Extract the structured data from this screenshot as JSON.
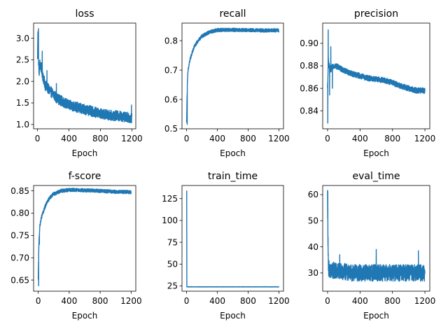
{
  "chart_data": [
    {
      "type": "line",
      "title": "loss",
      "xlabel": "Epoch",
      "ylabel": "",
      "xlim": [
        -50,
        1250
      ],
      "ylim": [
        0.9,
        3.35
      ],
      "xticks": [
        0,
        400,
        800,
        1200
      ],
      "yticks": [
        1.0,
        1.5,
        2.0,
        2.5,
        3.0
      ],
      "ytick_labels": [
        "1.0",
        "1.5",
        "2.0",
        "2.5",
        "3.0"
      ],
      "series": [
        {
          "color": "#1f77b4",
          "x": [
            0,
            5,
            10,
            20,
            30,
            50,
            70,
            100,
            150,
            200,
            250,
            300,
            400,
            500,
            600,
            700,
            800,
            900,
            1000,
            1100,
            1200
          ],
          "y": [
            2.5,
            3.2,
            2.6,
            2.2,
            2.4,
            2.3,
            2.1,
            1.9,
            1.8,
            1.7,
            1.6,
            1.55,
            1.45,
            1.4,
            1.35,
            1.3,
            1.25,
            1.22,
            1.2,
            1.18,
            1.15
          ],
          "noise": 0.12,
          "spikes": [
            [
              60,
              2.7
            ],
            [
              12,
              3.22
            ],
            [
              120,
              2.25
            ],
            [
              240,
              1.95
            ],
            [
              1195,
              1.45
            ]
          ]
        }
      ]
    },
    {
      "type": "line",
      "title": "recall",
      "xlabel": "Epoch",
      "ylabel": "",
      "xlim": [
        -60,
        1260
      ],
      "ylim": [
        0.5,
        0.86
      ],
      "xticks": [
        0,
        400,
        800,
        1200
      ],
      "yticks": [
        0.5,
        0.6,
        0.7,
        0.8
      ],
      "ytick_labels": [
        "0.5",
        "0.6",
        "0.7",
        "0.8"
      ],
      "series": [
        {
          "color": "#1f77b4",
          "x": [
            0,
            5,
            10,
            20,
            40,
            60,
            100,
            150,
            200,
            300,
            400,
            500,
            600,
            800,
            1000,
            1200
          ],
          "y": [
            0.52,
            0.6,
            0.66,
            0.7,
            0.73,
            0.75,
            0.78,
            0.8,
            0.815,
            0.83,
            0.836,
            0.837,
            0.837,
            0.836,
            0.835,
            0.835
          ],
          "noise": 0.006,
          "spikes": [
            [
              8,
              0.515
            ],
            [
              15,
              0.69
            ]
          ]
        }
      ]
    },
    {
      "type": "line",
      "title": "precision",
      "xlabel": "Epoch",
      "ylabel": "",
      "xlim": [
        -60,
        1260
      ],
      "ylim": [
        0.824,
        0.918
      ],
      "xticks": [
        0,
        400,
        800,
        1200
      ],
      "yticks": [
        0.84,
        0.86,
        0.88,
        0.9
      ],
      "ytick_labels": [
        "0.84",
        "0.86",
        "0.88",
        "0.90"
      ],
      "series": [
        {
          "color": "#1f77b4",
          "x": [
            0,
            10,
            20,
            40,
            60,
            100,
            150,
            200,
            300,
            400,
            500,
            600,
            700,
            800,
            900,
            1000,
            1100,
            1200
          ],
          "y": [
            0.86,
            0.885,
            0.88,
            0.875,
            0.88,
            0.88,
            0.878,
            0.876,
            0.873,
            0.871,
            0.869,
            0.868,
            0.867,
            0.865,
            0.862,
            0.86,
            0.858,
            0.858
          ],
          "noise": 0.0025,
          "spikes": [
            [
              3,
              0.829
            ],
            [
              8,
              0.912
            ],
            [
              25,
              0.854
            ],
            [
              40,
              0.897
            ],
            [
              60,
              0.86
            ]
          ]
        }
      ]
    },
    {
      "type": "line",
      "title": "f-score",
      "xlabel": "Epoch",
      "ylabel": "",
      "xlim": [
        -60,
        1260
      ],
      "ylim": [
        0.625,
        0.862
      ],
      "xticks": [
        0,
        400,
        800,
        1200
      ],
      "yticks": [
        0.65,
        0.7,
        0.75,
        0.8,
        0.85
      ],
      "ytick_labels": [
        "0.65",
        "0.70",
        "0.75",
        "0.80",
        "0.85"
      ],
      "series": [
        {
          "color": "#1f77b4",
          "x": [
            0,
            5,
            10,
            20,
            40,
            60,
            100,
            150,
            200,
            300,
            400,
            500,
            600,
            800,
            1000,
            1200
          ],
          "y": [
            0.65,
            0.7,
            0.74,
            0.77,
            0.79,
            0.8,
            0.82,
            0.835,
            0.843,
            0.85,
            0.852,
            0.852,
            0.851,
            0.85,
            0.848,
            0.847
          ],
          "noise": 0.004,
          "spikes": [
            [
              5,
              0.637
            ],
            [
              15,
              0.73
            ]
          ]
        }
      ]
    },
    {
      "type": "line",
      "title": "train_time",
      "xlabel": "Epoch",
      "ylabel": "",
      "xlim": [
        -60,
        1260
      ],
      "ylim": [
        19,
        140
      ],
      "xticks": [
        0,
        400,
        800,
        1200
      ],
      "yticks": [
        25,
        50,
        75,
        100,
        125
      ],
      "ytick_labels": [
        "25",
        "50",
        "75",
        "100",
        "125"
      ],
      "series": [
        {
          "color": "#1f77b4",
          "x": [
            0,
            1,
            3,
            20,
            100,
            400,
            800,
            1200
          ],
          "y": [
            134,
            134,
            24,
            24,
            24,
            24,
            24,
            24
          ],
          "noise": 0.15,
          "spikes": []
        }
      ]
    },
    {
      "type": "line",
      "title": "eval_time",
      "xlabel": "Epoch",
      "ylabel": "",
      "xlim": [
        -60,
        1260
      ],
      "ylim": [
        23,
        63.5
      ],
      "xticks": [
        0,
        400,
        800,
        1200
      ],
      "yticks": [
        30,
        40,
        50,
        60
      ],
      "ytick_labels": [
        "30",
        "40",
        "50",
        "60"
      ],
      "series": [
        {
          "color": "#1f77b4",
          "x": [
            0,
            2,
            10,
            30,
            100,
            300,
            600,
            900,
            1200
          ],
          "y": [
            61,
            50,
            32,
            31,
            31,
            30,
            30,
            30,
            30
          ],
          "noise": 3.2,
          "spikes": [
            [
              3,
              61.2
            ],
            [
              600,
              39
            ],
            [
              1120,
              38.5
            ],
            [
              150,
              37
            ]
          ]
        }
      ]
    }
  ]
}
